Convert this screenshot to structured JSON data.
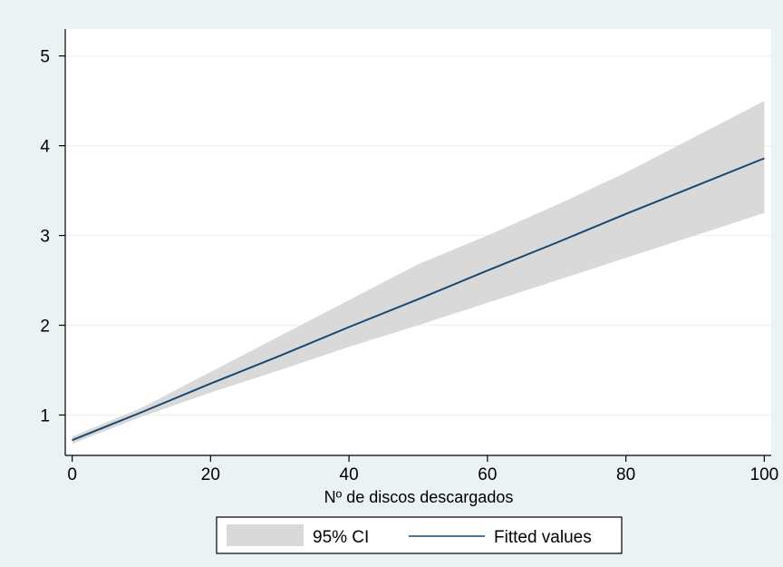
{
  "colors": {
    "outer_background": "#eaf2f3",
    "plot_background": "#ffffff",
    "gridline": "#eaf2f3",
    "ci_fill": "#d9d9d9",
    "fit_line": "#1a476f",
    "axis": "#000000"
  },
  "chart_data": {
    "type": "area",
    "title": "",
    "xlabel": "Nº de discos descargados",
    "ylabel": "",
    "xlim": [
      -1,
      101
    ],
    "ylim": [
      0.55,
      5.3
    ],
    "x_ticks": [
      0,
      20,
      40,
      60,
      80,
      100
    ],
    "y_ticks": [
      1,
      2,
      3,
      4,
      5
    ],
    "grid": true,
    "legend_position": "bottom",
    "series": [
      {
        "name": "95% CI",
        "type": "band",
        "x": [
          0,
          10,
          20,
          30,
          40,
          50,
          60,
          70,
          80,
          90,
          100
        ],
        "lower": [
          0.68,
          0.98,
          1.25,
          1.5,
          1.76,
          2.0,
          2.25,
          2.5,
          2.75,
          3.0,
          3.25
        ],
        "upper": [
          0.76,
          1.08,
          1.48,
          1.88,
          2.28,
          2.68,
          3.0,
          3.34,
          3.7,
          4.1,
          4.5
        ]
      },
      {
        "name": "Fitted values",
        "type": "line",
        "x": [
          0,
          10,
          20,
          30,
          40,
          50,
          60,
          70,
          80,
          90,
          100
        ],
        "y": [
          0.72,
          1.03,
          1.35,
          1.66,
          1.98,
          2.29,
          2.61,
          2.92,
          3.24,
          3.55,
          3.86
        ]
      }
    ],
    "legend": {
      "ci_label": "95% CI",
      "fit_label": "Fitted values"
    }
  }
}
